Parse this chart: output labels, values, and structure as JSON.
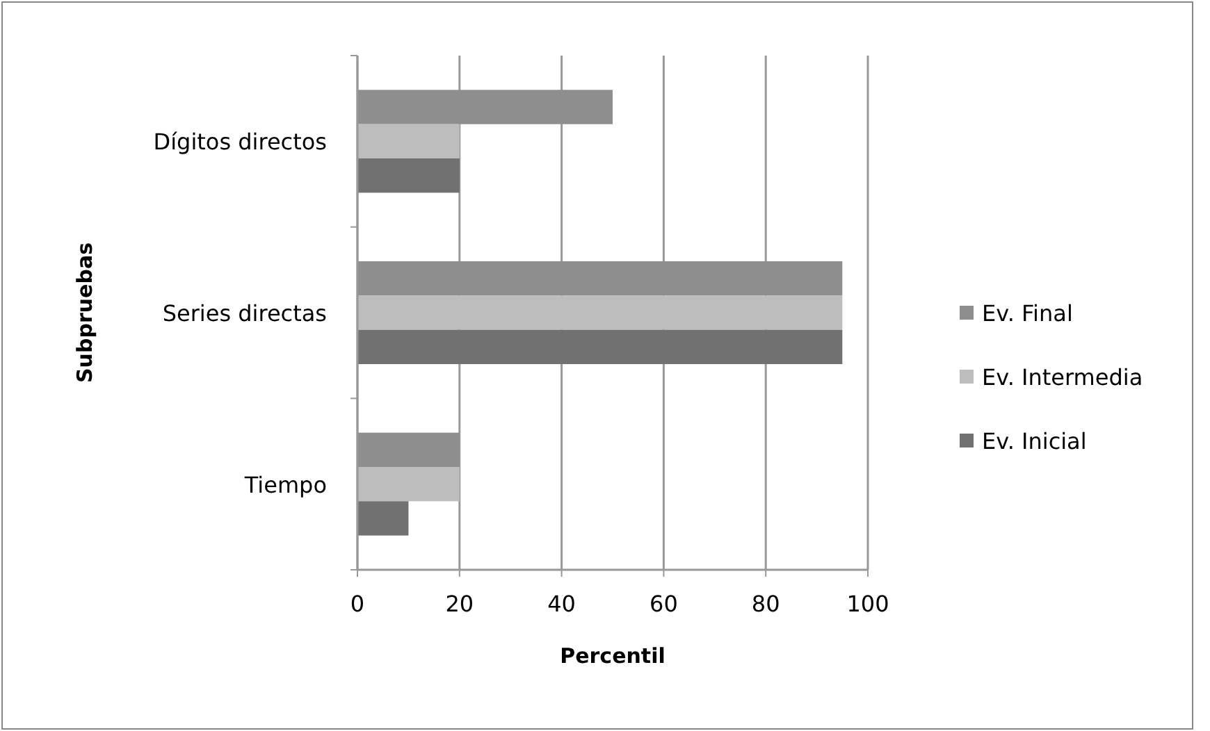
{
  "chart_data": {
    "type": "bar",
    "orientation": "horizontal",
    "xlabel": "Percentil",
    "ylabel": "Subpruebas",
    "categories": [
      "Dígitos directos",
      "Series directas",
      "Tiempo"
    ],
    "series": [
      {
        "name": "Ev. Final",
        "color": "#8e8e8e",
        "values": [
          50,
          95,
          20
        ]
      },
      {
        "name": "Ev. Intermedia",
        "color": "#bdbdbd",
        "values": [
          20,
          95,
          20
        ]
      },
      {
        "name": "Ev. Inicial",
        "color": "#717171",
        "values": [
          20,
          95,
          10
        ]
      }
    ],
    "xlim": [
      0,
      100
    ],
    "xticks": [
      0,
      20,
      40,
      60,
      80,
      100
    ],
    "grid": "x",
    "legend": "right"
  }
}
